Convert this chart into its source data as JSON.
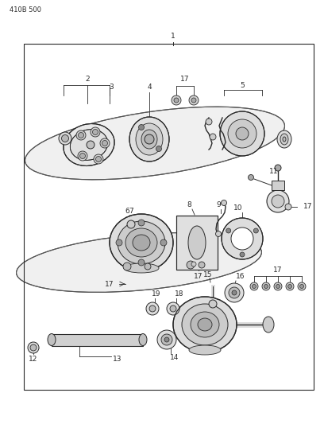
{
  "bg_color": "#ffffff",
  "line_color": "#2a2a2a",
  "header_text": "410B 500",
  "fig_width": 4.08,
  "fig_height": 5.33,
  "dpi": 100
}
